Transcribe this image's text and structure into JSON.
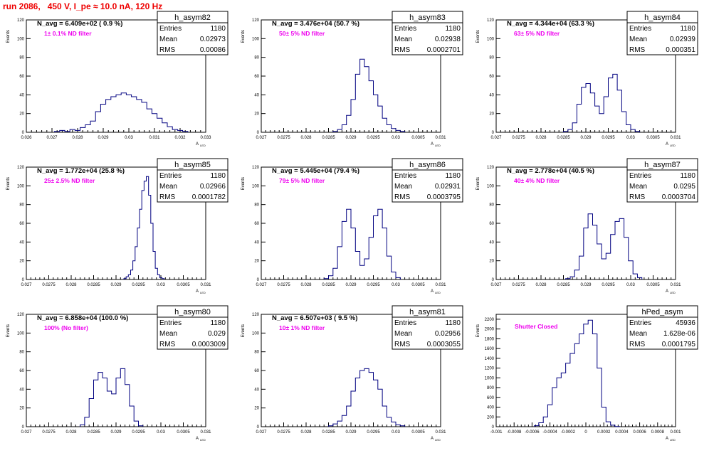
{
  "title": "run 2086,   450 V, I_pe ≈ 10.0 nA, 120 Hz",
  "colors": {
    "title": "#ee0000",
    "histogram": "#000080",
    "filter_label": "#ee00ee",
    "frame": "#000000"
  },
  "chart_data": [
    {
      "type": "histogram",
      "name": "h_asym82",
      "stats": {
        "entries_label": "Entries",
        "entries": "1180",
        "mean_label": "Mean",
        "mean": "0.02973",
        "rms_label": "RMS",
        "rms": "0.00086"
      },
      "n_avg_text": "N_avg = 6.409e+02 ( 0.9 %)",
      "filter_text": "1± 0.1% ND filter",
      "xlabel": "A_LED",
      "ylabel": "Events",
      "xlim": [
        0.026,
        0.033
      ],
      "ylim": [
        0,
        120
      ],
      "xticks": [
        "0.026",
        "0.027",
        "0.028",
        "0.029",
        "0.03",
        "0.031",
        "0.032",
        "0.033"
      ],
      "yticks": [
        "0",
        "20",
        "40",
        "60",
        "80",
        "100",
        "120"
      ],
      "x": [
        0.0272,
        0.0274,
        0.0276,
        0.0278,
        0.028,
        0.0282,
        0.0284,
        0.0286,
        0.0288,
        0.029,
        0.0292,
        0.0294,
        0.0296,
        0.0298,
        0.03,
        0.0302,
        0.0304,
        0.0306,
        0.0308,
        0.031,
        0.0312,
        0.0314,
        0.0316,
        0.0318,
        0.032,
        0.0322
      ],
      "values": [
        1,
        2,
        1,
        3,
        2,
        5,
        8,
        12,
        22,
        30,
        35,
        38,
        40,
        42,
        40,
        38,
        35,
        32,
        25,
        20,
        15,
        10,
        6,
        3,
        2,
        1
      ]
    },
    {
      "type": "histogram",
      "name": "h_asym83",
      "stats": {
        "entries_label": "Entries",
        "entries": "1180",
        "mean_label": "Mean",
        "mean": "0.02938",
        "rms_label": "RMS",
        "rms": "0.0002701"
      },
      "n_avg_text": "N_avg = 3.476e+04 (50.7 %)",
      "filter_text": "50± 5% ND filter",
      "xlabel": "A_LED",
      "ylabel": "Events",
      "xlim": [
        0.027,
        0.031
      ],
      "ylim": [
        0,
        120
      ],
      "xticks": [
        "0.027",
        "0.0275",
        "0.028",
        "0.0285",
        "0.029",
        "0.0295",
        "0.03",
        "0.0305",
        "0.031"
      ],
      "yticks": [
        "0",
        "20",
        "40",
        "60",
        "80",
        "100",
        "120"
      ],
      "x": [
        0.02865,
        0.02875,
        0.02885,
        0.02895,
        0.02905,
        0.02915,
        0.02925,
        0.02935,
        0.02945,
        0.02955,
        0.02965,
        0.02975,
        0.02985,
        0.02995,
        0.03005,
        0.03015
      ],
      "values": [
        1,
        3,
        8,
        18,
        35,
        62,
        78,
        70,
        55,
        40,
        28,
        15,
        8,
        4,
        2,
        1
      ]
    },
    {
      "type": "histogram",
      "name": "h_asym84",
      "stats": {
        "entries_label": "Entries",
        "entries": "1180",
        "mean_label": "Mean",
        "mean": "0.02939",
        "rms_label": "RMS",
        "rms": "0.000351"
      },
      "n_avg_text": "N_avg = 4.344e+04 (63.3 %)",
      "filter_text": "63± 5% ND filter",
      "xlabel": "A_LED",
      "ylabel": "Events",
      "xlim": [
        0.027,
        0.031
      ],
      "ylim": [
        0,
        120
      ],
      "xticks": [
        "0.027",
        "0.0275",
        "0.028",
        "0.0285",
        "0.029",
        "0.0295",
        "0.03",
        "0.0305",
        "0.031"
      ],
      "yticks": [
        "0",
        "20",
        "40",
        "60",
        "80",
        "100",
        "120"
      ],
      "x": [
        0.02855,
        0.02865,
        0.02875,
        0.02885,
        0.02895,
        0.02905,
        0.02915,
        0.02925,
        0.02935,
        0.02945,
        0.02955,
        0.02965,
        0.02975,
        0.02985,
        0.02995,
        0.03005,
        0.03015
      ],
      "values": [
        1,
        3,
        10,
        30,
        48,
        52,
        42,
        28,
        20,
        38,
        58,
        62,
        45,
        22,
        8,
        3,
        1
      ]
    },
    {
      "type": "histogram",
      "name": "h_asym85",
      "stats": {
        "entries_label": "Entries",
        "entries": "1180",
        "mean_label": "Mean",
        "mean": "0.02966",
        "rms_label": "RMS",
        "rms": "0.0001782"
      },
      "n_avg_text": "N_avg = 1.772e+04 (25.8 %)",
      "filter_text": "25± 2.5% ND filter",
      "xlabel": "A_LED",
      "ylabel": "Events",
      "xlim": [
        0.027,
        0.031
      ],
      "ylim": [
        0,
        120
      ],
      "xticks": [
        "0.027",
        "0.0275",
        "0.028",
        "0.0285",
        "0.029",
        "0.0295",
        "0.03",
        "0.0305",
        "0.031"
      ],
      "yticks": [
        "0",
        "20",
        "40",
        "60",
        "80",
        "100",
        "120"
      ],
      "x": [
        0.0292,
        0.02925,
        0.0293,
        0.02935,
        0.0294,
        0.02945,
        0.0295,
        0.02955,
        0.0296,
        0.02965,
        0.0297,
        0.02975,
        0.0298,
        0.02985,
        0.0299,
        0.02995,
        0.03,
        0.03005
      ],
      "values": [
        1,
        3,
        5,
        10,
        20,
        35,
        55,
        75,
        95,
        105,
        110,
        90,
        60,
        30,
        12,
        5,
        2,
        1
      ]
    },
    {
      "type": "histogram",
      "name": "h_asym86",
      "stats": {
        "entries_label": "Entries",
        "entries": "1180",
        "mean_label": "Mean",
        "mean": "0.02931",
        "rms_label": "RMS",
        "rms": "0.0003795"
      },
      "n_avg_text": "N_avg = 5.445e+04 (79.4 %)",
      "filter_text": "79± 5% ND filter",
      "xlabel": "A_LED",
      "ylabel": "Events",
      "xlim": [
        0.027,
        0.031
      ],
      "ylim": [
        0,
        120
      ],
      "xticks": [
        "0.027",
        "0.0275",
        "0.028",
        "0.0285",
        "0.029",
        "0.0295",
        "0.03",
        "0.0305",
        "0.031"
      ],
      "yticks": [
        "0",
        "20",
        "40",
        "60",
        "80",
        "100",
        "120"
      ],
      "x": [
        0.02845,
        0.02855,
        0.02865,
        0.02875,
        0.02885,
        0.02895,
        0.02905,
        0.02915,
        0.02925,
        0.02935,
        0.02945,
        0.02955,
        0.02965,
        0.02975,
        0.02985,
        0.02995,
        0.03005
      ],
      "values": [
        1,
        4,
        12,
        35,
        62,
        75,
        55,
        30,
        15,
        22,
        45,
        68,
        75,
        55,
        25,
        8,
        2
      ]
    },
    {
      "type": "histogram",
      "name": "h_asym87",
      "stats": {
        "entries_label": "Entries",
        "entries": "1180",
        "mean_label": "Mean",
        "mean": "0.0295",
        "rms_label": "RMS",
        "rms": "0.0003704"
      },
      "n_avg_text": "N_avg = 2.778e+04 (40.5 %)",
      "filter_text": "40± 4% ND filter",
      "xlabel": "A_LED",
      "ylabel": "Events",
      "xlim": [
        0.027,
        0.031
      ],
      "ylim": [
        0,
        120
      ],
      "xticks": [
        "0.027",
        "0.0275",
        "0.028",
        "0.0285",
        "0.029",
        "0.0295",
        "0.03",
        "0.0305",
        "0.031"
      ],
      "yticks": [
        "0",
        "20",
        "40",
        "60",
        "80",
        "100",
        "120"
      ],
      "x": [
        0.0286,
        0.0287,
        0.0288,
        0.0289,
        0.029,
        0.0291,
        0.0292,
        0.0293,
        0.0294,
        0.0295,
        0.0296,
        0.0297,
        0.0298,
        0.0299,
        0.03,
        0.0301,
        0.0302
      ],
      "values": [
        1,
        3,
        10,
        25,
        55,
        70,
        58,
        38,
        22,
        28,
        48,
        62,
        65,
        45,
        20,
        6,
        2
      ]
    },
    {
      "type": "histogram",
      "name": "h_asym80",
      "stats": {
        "entries_label": "Entries",
        "entries": "1180",
        "mean_label": "Mean",
        "mean": "0.029",
        "rms_label": "RMS",
        "rms": "0.0003009"
      },
      "n_avg_text": "N_avg = 6.858e+04 (100.0 %)",
      "filter_text": "100% (No filter)",
      "xlabel": "A_LED",
      "ylabel": "Events",
      "xlim": [
        0.027,
        0.031
      ],
      "ylim": [
        0,
        120
      ],
      "xticks": [
        "0.027",
        "0.0275",
        "0.028",
        "0.0285",
        "0.029",
        "0.0295",
        "0.03",
        "0.0305",
        "0.031"
      ],
      "yticks": [
        "0",
        "20",
        "40",
        "60",
        "80",
        "100",
        "120"
      ],
      "x": [
        0.02825,
        0.02835,
        0.02845,
        0.02855,
        0.02865,
        0.02875,
        0.02885,
        0.02895,
        0.02905,
        0.02915,
        0.02925,
        0.02935,
        0.02945,
        0.02955
      ],
      "values": [
        2,
        10,
        30,
        50,
        58,
        52,
        38,
        35,
        52,
        62,
        45,
        22,
        6,
        1
      ]
    },
    {
      "type": "histogram",
      "name": "h_asym81",
      "stats": {
        "entries_label": "Entries",
        "entries": "1180",
        "mean_label": "Mean",
        "mean": "0.02956",
        "rms_label": "RMS",
        "rms": "0.0003055"
      },
      "n_avg_text": "N_avg = 6.507e+03 ( 9.5 %)",
      "filter_text": "10± 1% ND filter",
      "xlabel": "A_LED",
      "ylabel": "Events",
      "xlim": [
        0.027,
        0.031
      ],
      "ylim": [
        0,
        120
      ],
      "xticks": [
        "0.027",
        "0.0275",
        "0.028",
        "0.0285",
        "0.029",
        "0.0295",
        "0.03",
        "0.0305",
        "0.031"
      ],
      "yticks": [
        "0",
        "20",
        "40",
        "60",
        "80",
        "100",
        "120"
      ],
      "x": [
        0.02855,
        0.02865,
        0.02875,
        0.02885,
        0.02895,
        0.02905,
        0.02915,
        0.02925,
        0.02935,
        0.02945,
        0.02955,
        0.02965,
        0.02975,
        0.02985,
        0.02995,
        0.03005,
        0.03015
      ],
      "values": [
        1,
        3,
        6,
        12,
        22,
        38,
        52,
        60,
        62,
        58,
        50,
        40,
        22,
        10,
        5,
        2,
        1
      ]
    },
    {
      "type": "histogram",
      "name": "hPed_asym",
      "stats": {
        "entries_label": "Entries",
        "entries": "45936",
        "mean_label": "Mean",
        "mean": "1.628e-06",
        "rms_label": "RMS",
        "rms": "0.0001795"
      },
      "n_avg_text": "",
      "filter_text": "Shutter Closed",
      "xlabel": "A_LED",
      "ylabel": "Events",
      "xlim": [
        -0.001,
        0.001
      ],
      "ylim": [
        0,
        2300
      ],
      "xticks": [
        "-0.001",
        "-0.0008",
        "-0.0006",
        "-0.0004",
        "-0.0002",
        "0",
        "0.0002",
        "0.0004",
        "0.0006",
        "0.0008",
        "0.001"
      ],
      "yticks": [
        "0",
        "200",
        "400",
        "600",
        "800",
        "1000",
        "1200",
        "1400",
        "1600",
        "1800",
        "2000",
        "2200"
      ],
      "x": [
        -0.00055,
        -0.0005,
        -0.00045,
        -0.0004,
        -0.00035,
        -0.0003,
        -0.00025,
        -0.0002,
        -0.00015,
        -0.0001,
        -5e-05,
        0.0,
        5e-05,
        0.0001,
        0.00015,
        0.0002,
        0.00025,
        0.0003,
        0.00035
      ],
      "values": [
        20,
        80,
        200,
        450,
        800,
        1000,
        1100,
        1300,
        1500,
        1700,
        1900,
        2100,
        2180,
        1900,
        1200,
        400,
        100,
        30,
        5
      ]
    }
  ]
}
